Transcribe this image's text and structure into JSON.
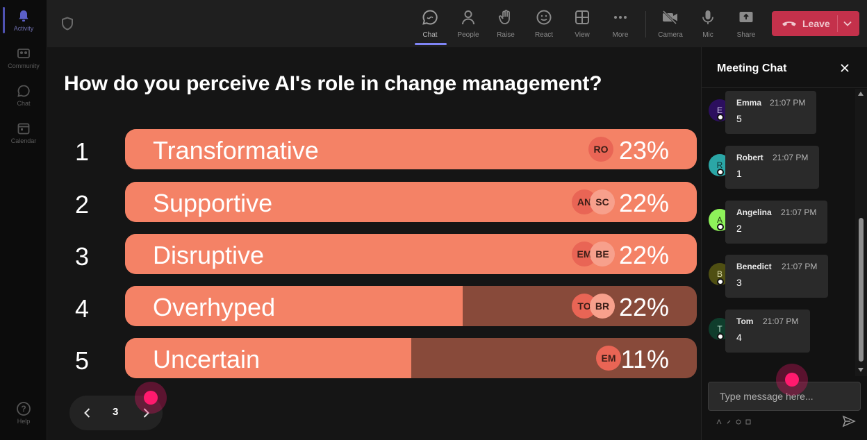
{
  "rail": {
    "items": [
      {
        "label": "Activity",
        "icon": "bell-icon"
      },
      {
        "label": "Community",
        "icon": "community-icon"
      },
      {
        "label": "Chat",
        "icon": "chat-icon"
      },
      {
        "label": "Calendar",
        "icon": "calendar-icon"
      },
      {
        "label": "Help",
        "icon": "help-icon"
      }
    ]
  },
  "toolbar": {
    "buttons": [
      {
        "label": "Chat",
        "icon": "chat-icon"
      },
      {
        "label": "People",
        "icon": "people-icon"
      },
      {
        "label": "Raise",
        "icon": "hand-icon"
      },
      {
        "label": "React",
        "icon": "smile-icon"
      },
      {
        "label": "View",
        "icon": "grid-icon"
      },
      {
        "label": "More",
        "icon": "more-icon"
      },
      {
        "label": "Camera",
        "icon": "camera-off-icon"
      },
      {
        "label": "Mic",
        "icon": "mic-icon"
      },
      {
        "label": "Share",
        "icon": "share-icon"
      }
    ],
    "leave_label": "Leave"
  },
  "poll": {
    "question": "How do you perceive AI's role in change management?",
    "options": [
      {
        "num": "1",
        "label": "Transformative",
        "percent": "23%",
        "fill": 1.0,
        "avatars": [
          "RO"
        ]
      },
      {
        "num": "2",
        "label": "Supportive",
        "percent": "22%",
        "fill": 1.0,
        "avatars": [
          "AN",
          "SC"
        ]
      },
      {
        "num": "3",
        "label": "Disruptive",
        "percent": "22%",
        "fill": 1.0,
        "avatars": [
          "EM",
          "BE"
        ]
      },
      {
        "num": "4",
        "label": "Overhyped",
        "percent": "22%",
        "fill": 0.59,
        "avatars": [
          "TO",
          "BR"
        ]
      },
      {
        "num": "5",
        "label": "Uncertain",
        "percent": "11%",
        "fill": 0.5,
        "avatars": [
          "EM"
        ]
      }
    ],
    "page": "3"
  },
  "chat": {
    "title": "Meeting Chat",
    "messages": [
      {
        "initial": "E",
        "name": "Emma",
        "time": "21:07 PM",
        "text": "5",
        "avatar_color": "#2c0f5e"
      },
      {
        "initial": "R",
        "name": "Robert",
        "time": "21:07 PM",
        "text": "1",
        "avatar_color": "#2ba6a6"
      },
      {
        "initial": "A",
        "name": "Angelina",
        "time": "21:07 PM",
        "text": "2",
        "avatar_color": "#8ef25a"
      },
      {
        "initial": "B",
        "name": "Benedict",
        "time": "21:07 PM",
        "text": "3",
        "avatar_color": "#4f4f12"
      },
      {
        "initial": "T",
        "name": "Tom",
        "time": "21:07 PM",
        "text": "4",
        "avatar_color": "#0f3d2c"
      }
    ],
    "input_placeholder": "Type message here..."
  },
  "colors": {
    "bar_fill": "#f48266",
    "bar_track": "#884a3a",
    "leave": "#c4314b",
    "accent": "#7f85f5",
    "cursor": "#ff1a6e"
  }
}
